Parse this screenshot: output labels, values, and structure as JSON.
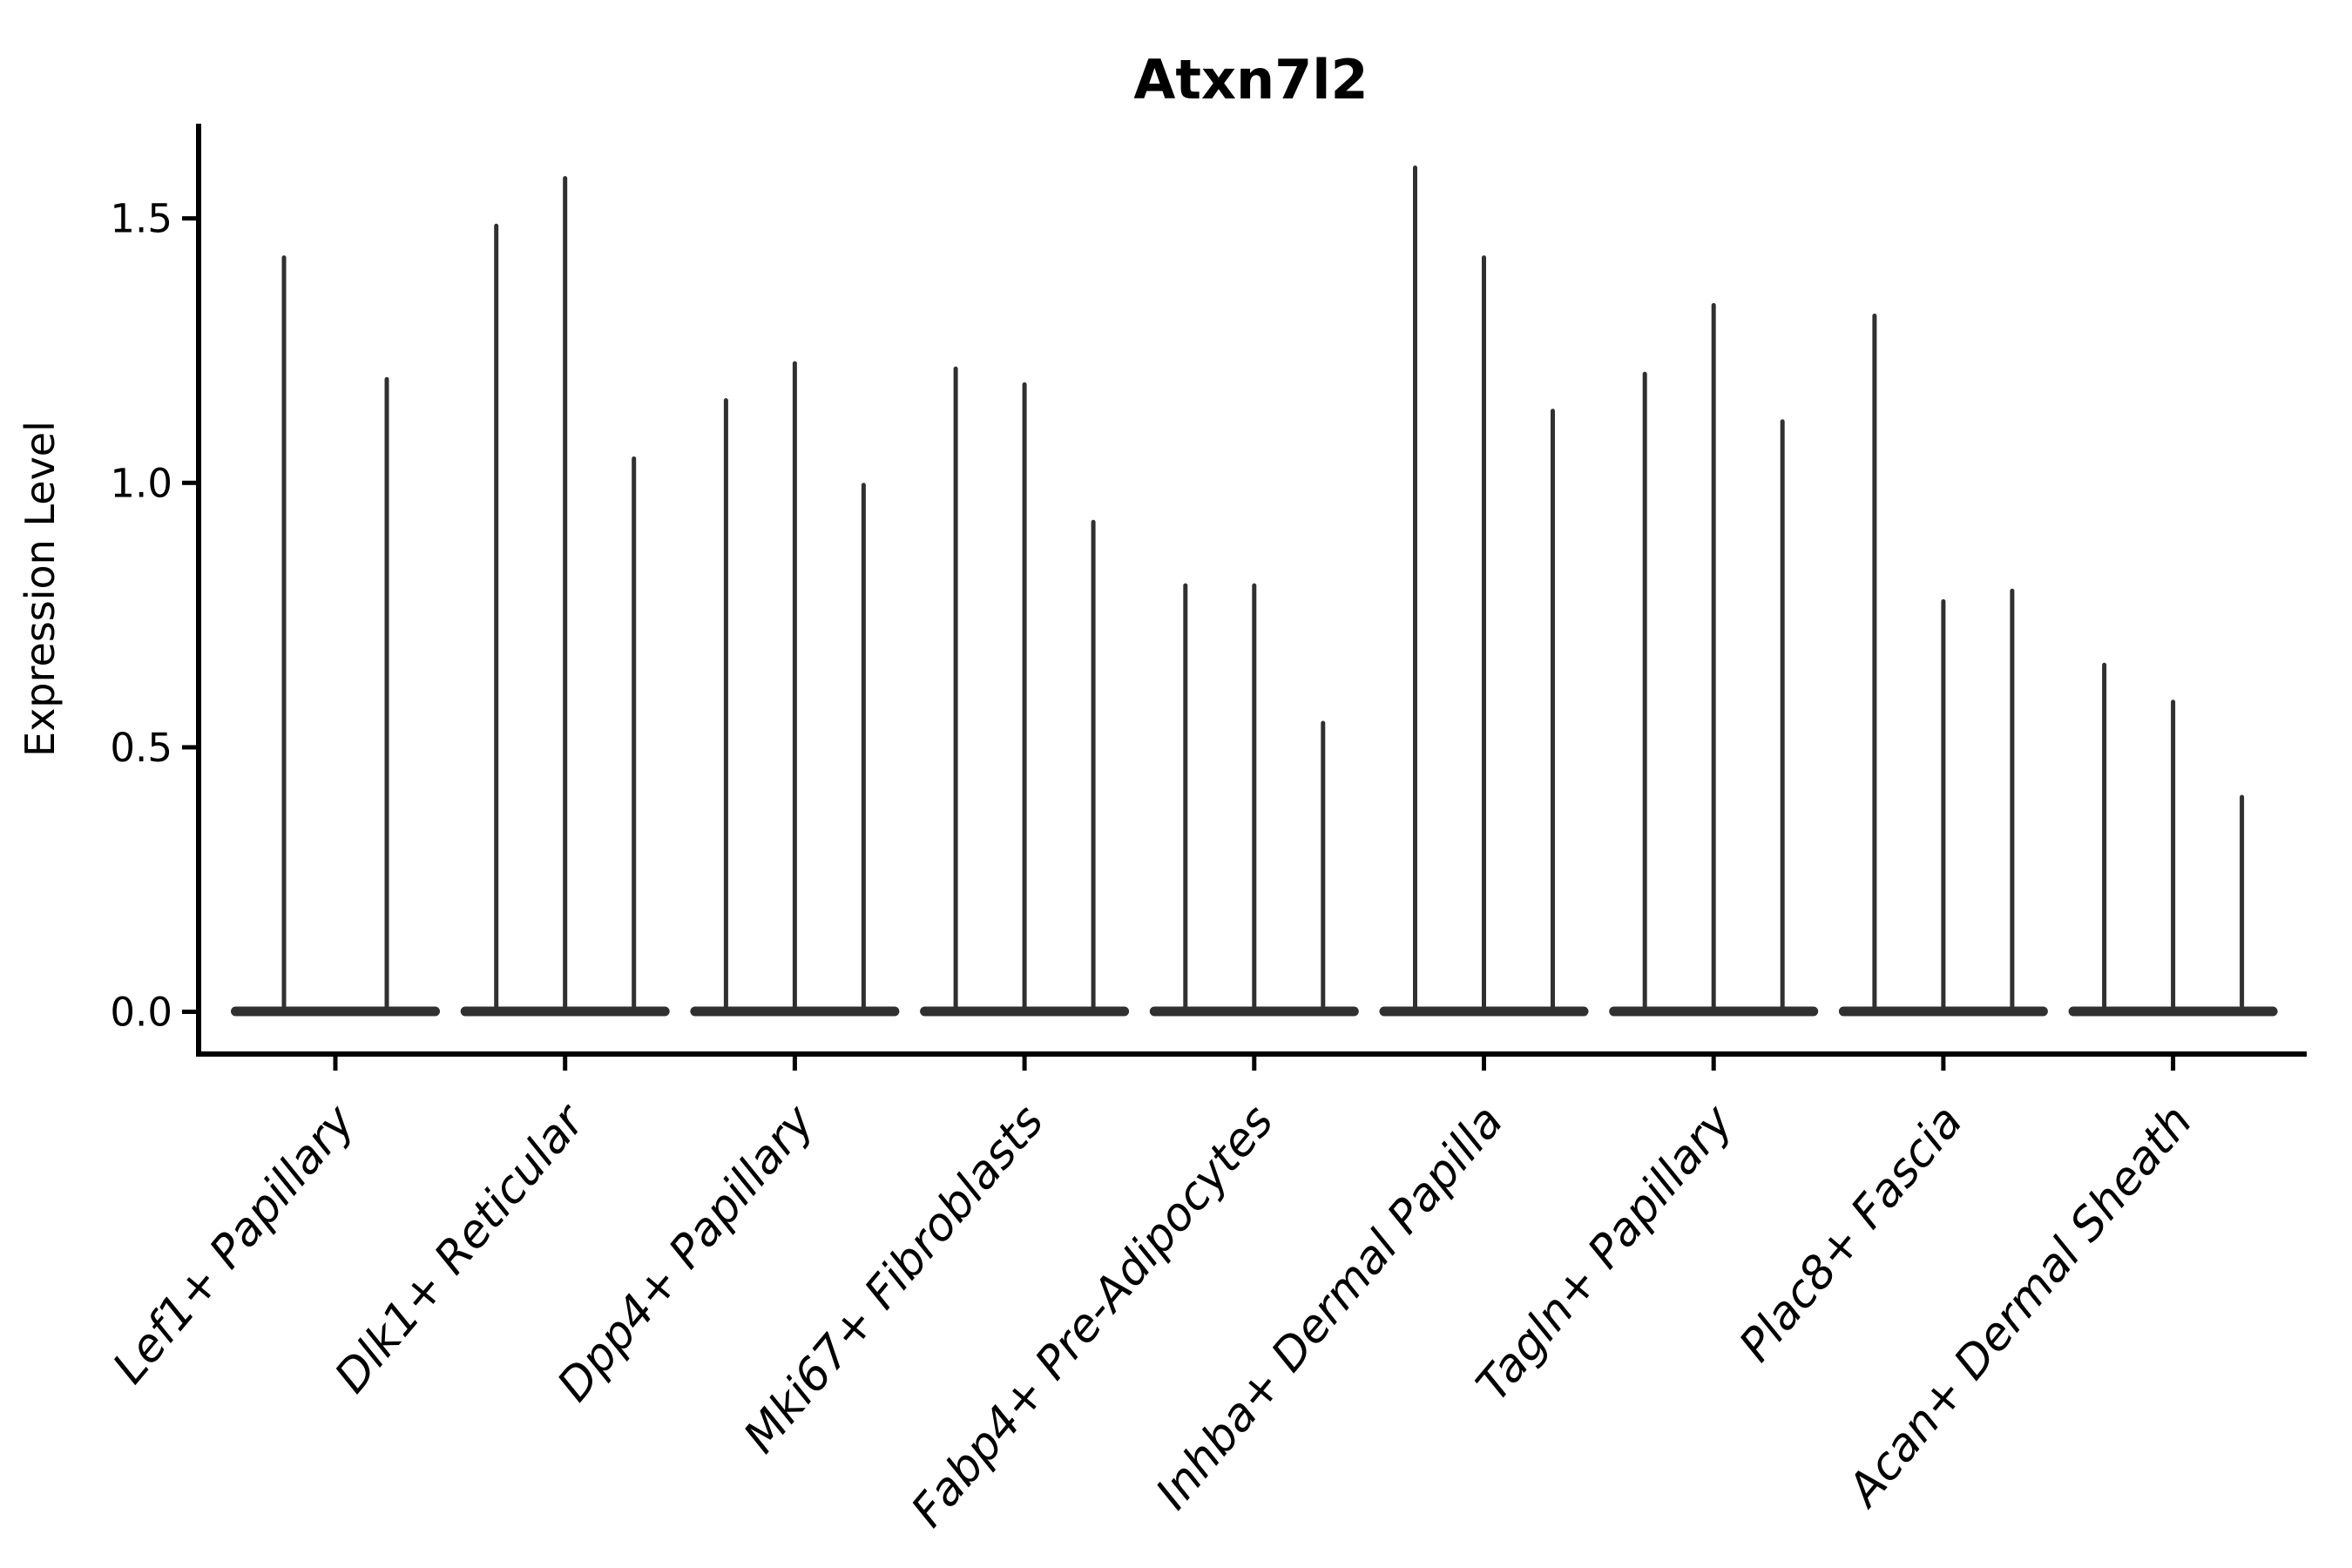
{
  "chart_data": {
    "type": "violin",
    "title": "Atxn7l2",
    "ylabel": "Expression Level",
    "xlabel": "",
    "categories": [
      "Lef1+ Papillary",
      "Dlk1+ Reticular",
      "Dpp4+ Papillary",
      "Mki67+ Fibroblasts",
      "Fabp4+ Pre-Adipocytes",
      "Inhba+ Dermal Papilla",
      "Tagln+ Papillary",
      "Plac8+ Fascia",
      "Acan+ Dermal Sheath"
    ],
    "series": [
      {
        "category": "Lef1+ Papillary",
        "violin_max_values": [
          1.43,
          1.2
        ]
      },
      {
        "category": "Dlk1+ Reticular",
        "violin_max_values": [
          1.49,
          1.58,
          1.05
        ]
      },
      {
        "category": "Dpp4+ Papillary",
        "violin_max_values": [
          1.16,
          1.23,
          1.0
        ]
      },
      {
        "category": "Mki67+ Fibroblasts",
        "violin_max_values": [
          1.22,
          1.19,
          0.93
        ]
      },
      {
        "category": "Fabp4+ Pre-Adipocytes",
        "violin_max_values": [
          0.81,
          0.81,
          0.55
        ]
      },
      {
        "category": "Inhba+ Dermal Papilla",
        "violin_max_values": [
          1.6,
          1.43,
          1.14
        ]
      },
      {
        "category": "Tagln+ Papillary",
        "violin_max_values": [
          1.21,
          1.34,
          1.12
        ]
      },
      {
        "category": "Plac8+ Fascia",
        "violin_max_values": [
          1.32,
          0.78,
          0.8
        ]
      },
      {
        "category": "Acan+ Dermal Sheath",
        "violin_max_values": [
          0.66,
          0.59,
          0.41
        ]
      }
    ],
    "baseline_value": 0.0,
    "yticks": [
      "0.0",
      "0.5",
      "1.0",
      "1.5"
    ],
    "ylim": [
      -0.08,
      1.68
    ],
    "grid": false,
    "legend": null,
    "violin_shape_note": "each violin is flat and wide at 0 with a thin spike up to its max value",
    "x_tick_label_rotation_deg": 50,
    "x_tick_label_style": "italic",
    "colors": {
      "violin": "#303030",
      "axis": "#000000",
      "text": "#000000",
      "background": "#ffffff"
    }
  }
}
